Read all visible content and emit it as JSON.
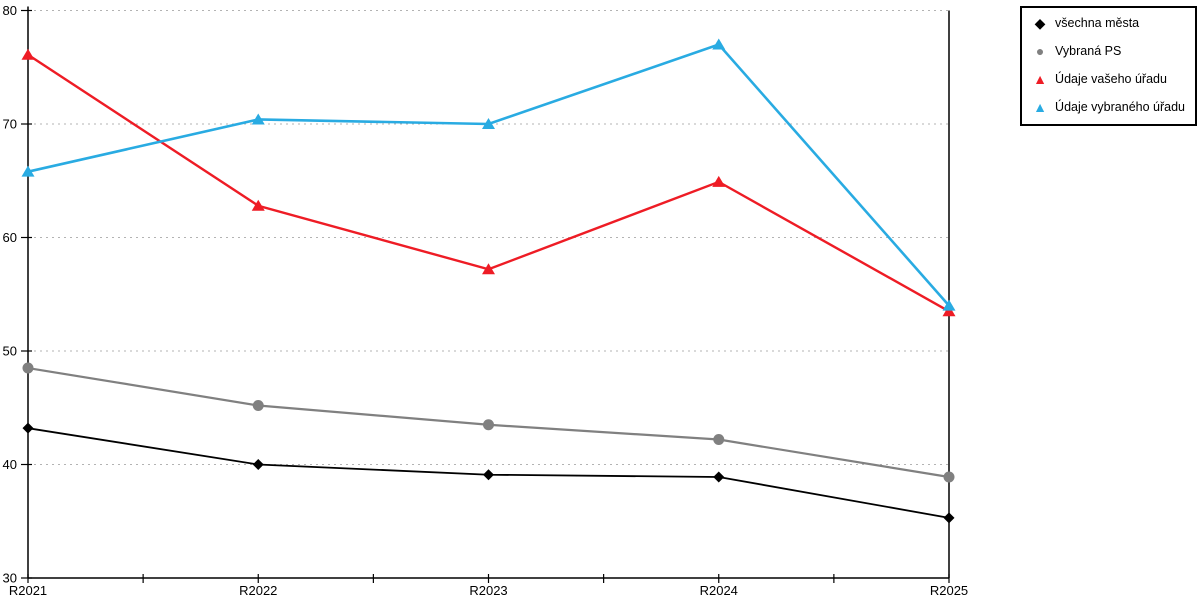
{
  "chart_data": {
    "type": "line",
    "title": "",
    "xlabel": "",
    "ylabel": "",
    "categories": [
      "R2021",
      "R2022",
      "R2023",
      "R2024",
      "R2025"
    ],
    "series": [
      {
        "name": "všechna města",
        "marker": "diamond",
        "color": "#000000",
        "values": [
          43.2,
          40.0,
          39.1,
          38.9,
          35.3
        ]
      },
      {
        "name": "Vybraná PS",
        "marker": "circle",
        "color": "#808080",
        "values": [
          48.5,
          45.2,
          43.5,
          42.2,
          38.9
        ]
      },
      {
        "name": "Údaje vašeho úřadu",
        "marker": "triangle",
        "color": "#ee1c25",
        "values": [
          76.1,
          62.8,
          57.2,
          64.9,
          53.5
        ]
      },
      {
        "name": "Údaje vybraného úřadu",
        "marker": "triangle",
        "color": "#29abe2",
        "values": [
          65.8,
          70.4,
          70.0,
          77.0,
          54.0
        ]
      }
    ],
    "ylim": [
      30,
      80
    ],
    "yticks": [
      30,
      40,
      50,
      60,
      70,
      80
    ],
    "grid": "horizontal-dotted",
    "grid_color": "#b3b3b3",
    "axis_color": "#000000",
    "background": "#ffffff",
    "legend_position": "top-right"
  }
}
